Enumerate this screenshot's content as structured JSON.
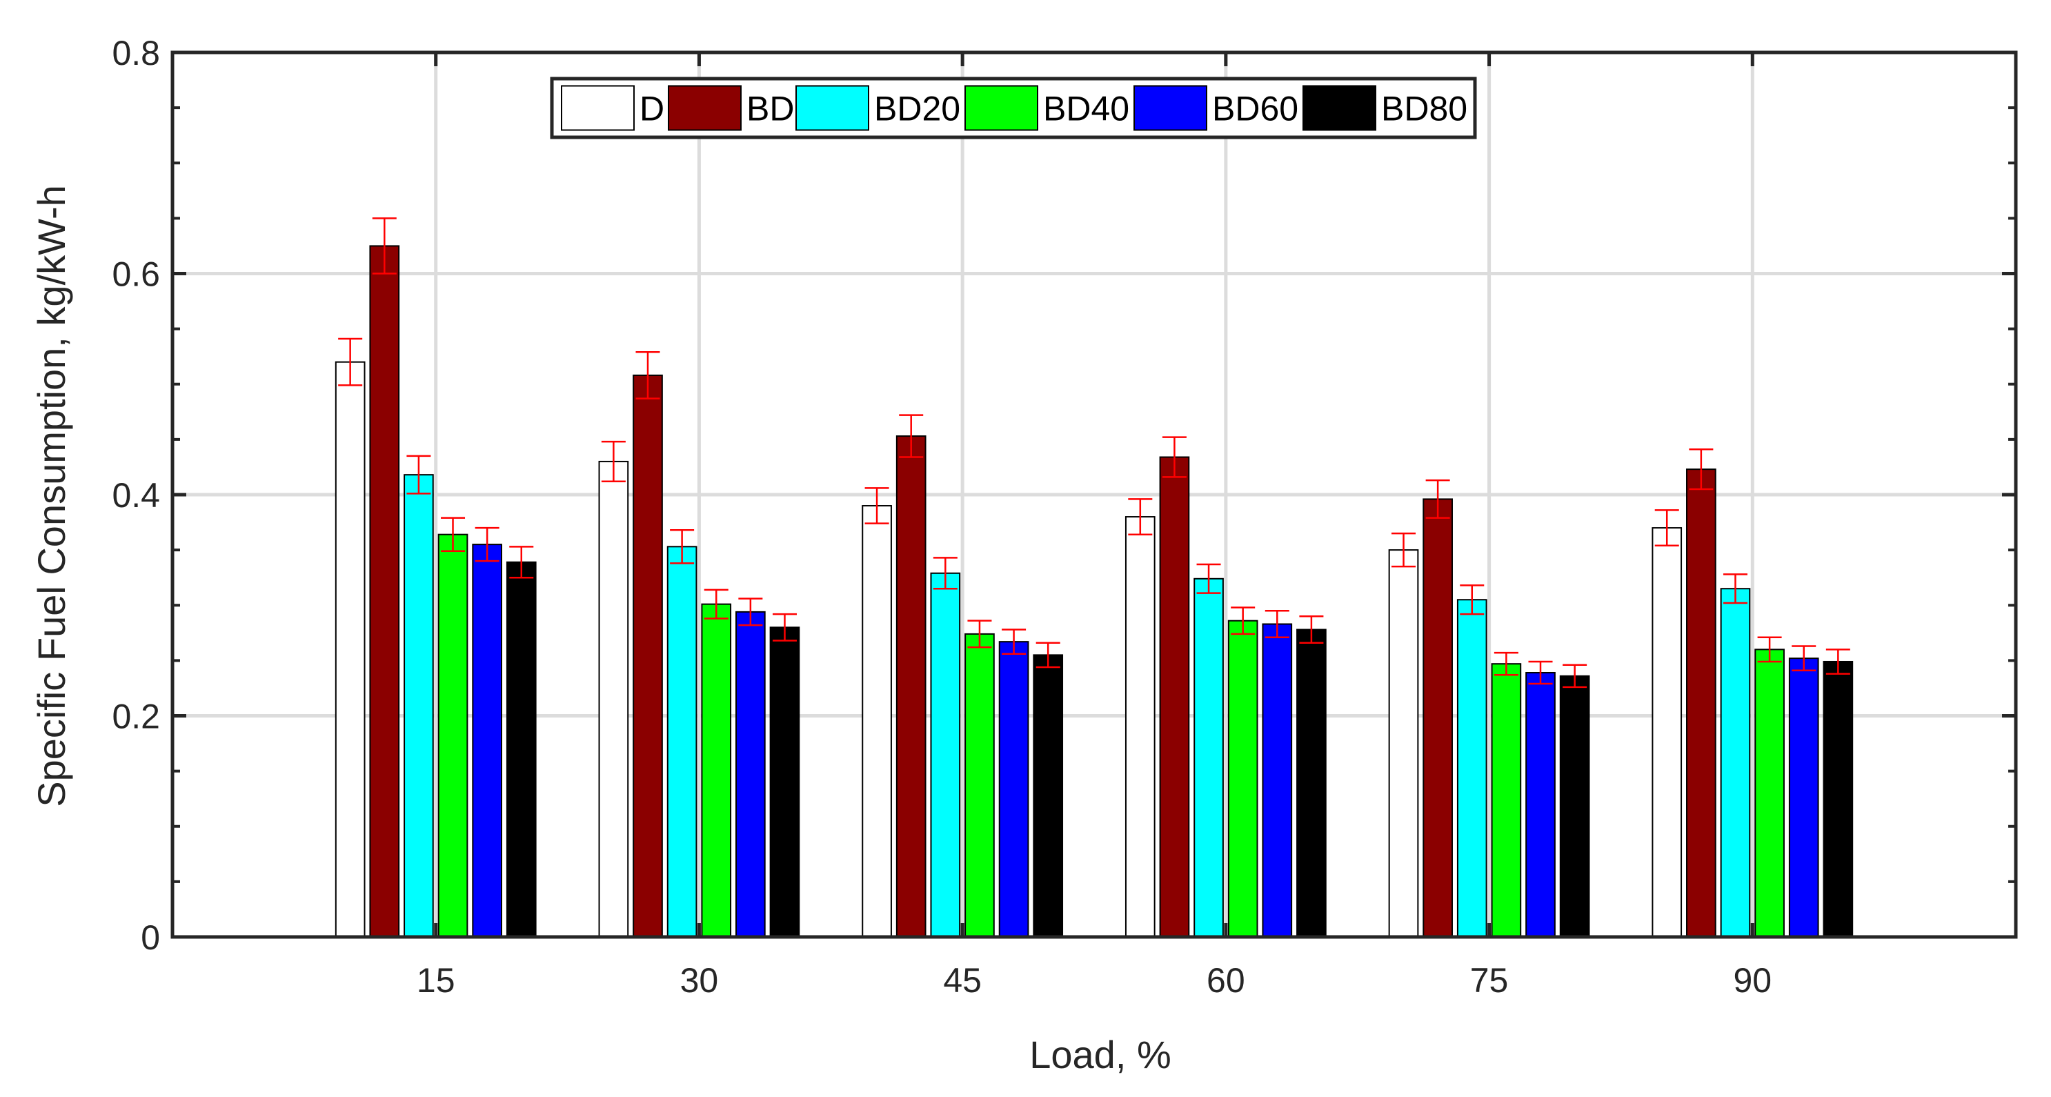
{
  "chart_data": {
    "type": "bar",
    "title": "",
    "xlabel": "Load, %",
    "ylabel": "Specific Fuel Consumption, kg/kW-h",
    "ylim": [
      0,
      0.8
    ],
    "xlim": [
      0,
      7
    ],
    "yticks": [
      0,
      0.2,
      0.4,
      0.6,
      0.8
    ],
    "ytick_labels": [
      "0",
      "0.2",
      "0.4",
      "0.6",
      "0.8"
    ],
    "grid": true,
    "error_bars": true,
    "legend_position": "top-center",
    "legend_orientation": "horizontal",
    "categories": [
      "15",
      "30",
      "45",
      "60",
      "75",
      "90"
    ],
    "series": [
      {
        "name": "D",
        "color": "#ffffff",
        "values": [
          0.52,
          0.43,
          0.39,
          0.38,
          0.35,
          0.37
        ],
        "errors": [
          0.021,
          0.018,
          0.016,
          0.016,
          0.015,
          0.016
        ]
      },
      {
        "name": "BD",
        "color": "#8b0000",
        "values": [
          0.625,
          0.508,
          0.453,
          0.434,
          0.396,
          0.423
        ],
        "errors": [
          0.025,
          0.021,
          0.019,
          0.018,
          0.017,
          0.018
        ]
      },
      {
        "name": "BD20",
        "color": "#00ffff",
        "values": [
          0.418,
          0.353,
          0.329,
          0.324,
          0.305,
          0.315
        ],
        "errors": [
          0.017,
          0.015,
          0.014,
          0.013,
          0.013,
          0.013
        ]
      },
      {
        "name": "BD40",
        "color": "#00ff00",
        "values": [
          0.364,
          0.301,
          0.274,
          0.286,
          0.247,
          0.26
        ],
        "errors": [
          0.015,
          0.013,
          0.012,
          0.012,
          0.01,
          0.011
        ]
      },
      {
        "name": "BD60",
        "color": "#0000ff",
        "values": [
          0.355,
          0.294,
          0.267,
          0.283,
          0.239,
          0.252
        ],
        "errors": [
          0.015,
          0.012,
          0.011,
          0.012,
          0.01,
          0.011
        ]
      },
      {
        "name": "BD80",
        "color": "#000000",
        "values": [
          0.339,
          0.28,
          0.255,
          0.278,
          0.236,
          0.249
        ],
        "errors": [
          0.014,
          0.012,
          0.011,
          0.012,
          0.01,
          0.011
        ]
      }
    ]
  }
}
